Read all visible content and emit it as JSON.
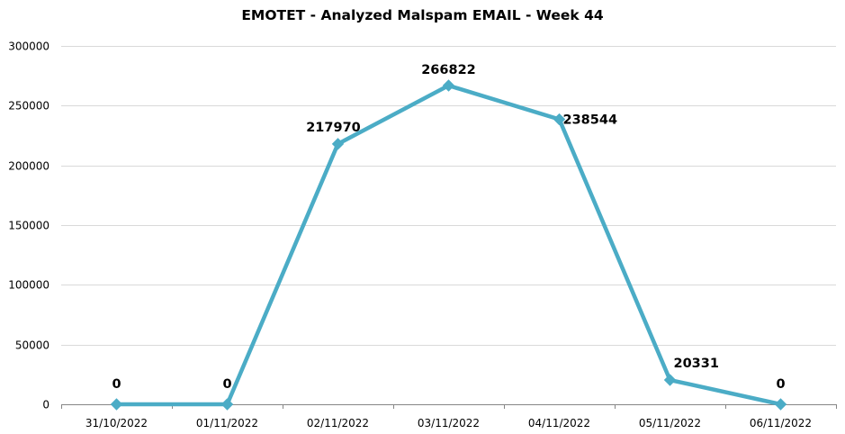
{
  "chart_data": {
    "type": "line",
    "title": "EMOTET - Analyzed Malspam EMAIL - Week 44",
    "xlabel": "",
    "ylabel": "",
    "categories": [
      "31/10/2022",
      "01/11/2022",
      "02/11/2022",
      "03/11/2022",
      "04/11/2022",
      "05/11/2022",
      "06/11/2022"
    ],
    "series": [
      {
        "values": [
          0,
          0,
          217970,
          266822,
          238544,
          20331,
          0
        ],
        "color": "#4BACC6",
        "marker": "diamond"
      }
    ],
    "ylim": [
      0,
      300000
    ],
    "yticks": [
      0,
      50000,
      100000,
      150000,
      200000,
      250000,
      300000
    ],
    "data_labels": true,
    "grid": true,
    "legend": "none"
  }
}
